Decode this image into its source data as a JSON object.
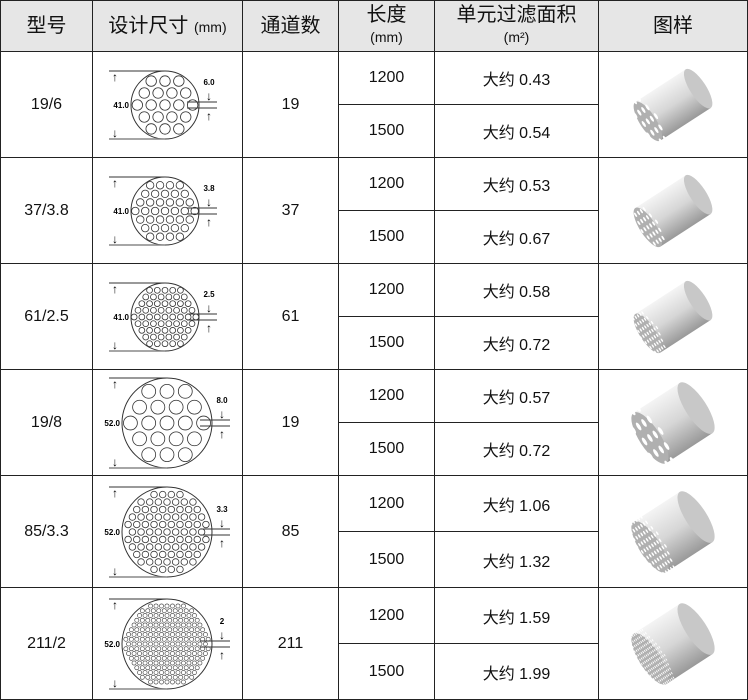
{
  "headers": {
    "model": "型号",
    "design": "设计尺寸",
    "design_unit": "(mm)",
    "channels": "通道数",
    "length": "长度",
    "length_unit": "(mm)",
    "area": "单元过滤面积",
    "area_unit": "(m²)",
    "image": "图样"
  },
  "rows": [
    {
      "model": "19/6",
      "diameter": "41.0",
      "channel_size": "6.0",
      "channels": "19",
      "lengths": [
        "1200",
        "1500"
      ],
      "areas": [
        "大约 0.43",
        "大约 0.54"
      ]
    },
    {
      "model": "37/3.8",
      "diameter": "41.0",
      "channel_size": "3.8",
      "channels": "37",
      "lengths": [
        "1200",
        "1500"
      ],
      "areas": [
        "大约 0.53",
        "大约 0.67"
      ]
    },
    {
      "model": "61/2.5",
      "diameter": "41.0",
      "channel_size": "2.5",
      "channels": "61",
      "lengths": [
        "1200",
        "1500"
      ],
      "areas": [
        "大约 0.58",
        "大约 0.72"
      ]
    },
    {
      "model": "19/8",
      "diameter": "52.0",
      "channel_size": "8.0",
      "channels": "19",
      "lengths": [
        "1200",
        "1500"
      ],
      "areas": [
        "大约 0.57",
        "大约 0.72"
      ]
    },
    {
      "model": "85/3.3",
      "diameter": "52.0",
      "channel_size": "3.3",
      "channels": "85",
      "lengths": [
        "1200",
        "1500"
      ],
      "areas": [
        "大约 1.06",
        "大约 1.32"
      ]
    },
    {
      "model": "211/2",
      "diameter": "52.0",
      "channel_size": "2",
      "channels": "211",
      "lengths": [
        "1200",
        "1500"
      ],
      "areas": [
        "大约 1.59",
        "大约 1.99"
      ]
    }
  ]
}
